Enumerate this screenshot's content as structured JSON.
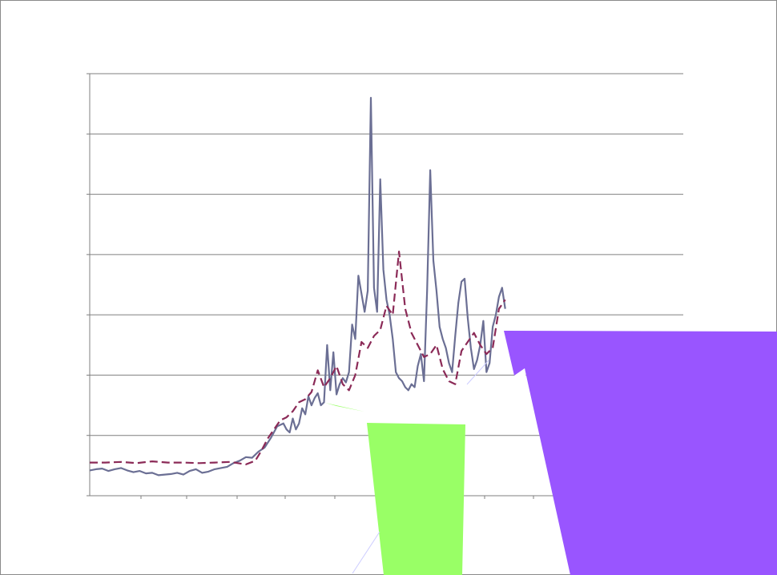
{
  "chart_data": {
    "type": "line",
    "title": "",
    "xlabel": "",
    "ylabel": "",
    "ylim": [
      0,
      7
    ],
    "xlim": [
      0,
      380
    ],
    "grid": true,
    "legend": "none",
    "colors": {
      "series_1": "#6b6f94",
      "series_2": "#8b2a57",
      "gridline": "#7f7f7f",
      "overlay_green": "#99ff66",
      "overlay_purple": "#9955ff"
    },
    "series": [
      {
        "key": "s1",
        "style": "solid",
        "x": [
          0,
          4,
          8,
          12,
          16,
          20,
          24,
          28,
          32,
          36,
          40,
          44,
          48,
          52,
          56,
          60,
          64,
          68,
          72,
          76,
          80,
          84,
          88,
          92,
          96,
          100,
          104,
          108,
          112,
          116,
          120,
          124,
          126,
          128,
          130,
          132,
          134,
          136,
          138,
          140,
          142,
          144,
          146,
          148,
          150,
          152,
          154,
          156,
          158,
          160,
          162,
          164,
          166,
          168,
          170,
          172,
          174,
          176,
          178,
          180,
          182,
          184,
          186,
          188,
          190,
          192,
          194,
          196,
          198,
          200,
          202,
          204,
          206,
          208,
          210,
          212,
          214,
          216,
          218,
          220,
          222,
          224,
          226,
          228,
          230,
          232,
          234,
          236,
          238,
          240,
          242,
          244,
          246,
          248,
          250,
          252,
          254,
          256,
          258,
          260,
          262,
          264,
          266
        ],
        "values": [
          0.42,
          0.44,
          0.45,
          0.41,
          0.44,
          0.46,
          0.42,
          0.39,
          0.41,
          0.37,
          0.38,
          0.34,
          0.35,
          0.36,
          0.38,
          0.35,
          0.41,
          0.44,
          0.38,
          0.4,
          0.44,
          0.46,
          0.48,
          0.54,
          0.58,
          0.64,
          0.63,
          0.73,
          0.8,
          0.96,
          1.15,
          1.2,
          1.1,
          1.05,
          1.28,
          1.1,
          1.2,
          1.45,
          1.35,
          1.65,
          1.5,
          1.62,
          1.7,
          1.5,
          1.55,
          2.5,
          1.75,
          2.38,
          1.68,
          1.85,
          1.95,
          1.88,
          2.05,
          2.84,
          2.6,
          3.65,
          3.35,
          3.05,
          3.4,
          6.6,
          3.45,
          3.05,
          5.25,
          3.75,
          3.25,
          3.0,
          2.6,
          2.05,
          1.95,
          1.9,
          1.8,
          1.75,
          1.85,
          1.8,
          2.15,
          2.35,
          1.9,
          3.4,
          5.4,
          3.9,
          3.4,
          2.8,
          2.6,
          2.45,
          2.2,
          2.05,
          2.65,
          3.2,
          3.55,
          3.6,
          2.95,
          2.45,
          2.1,
          2.25,
          2.5,
          2.9,
          2.05,
          2.2,
          2.8,
          3.0,
          3.3,
          3.45,
          3.1
        ]
      },
      {
        "key": "s2",
        "style": "dashed",
        "x": [
          0,
          10,
          20,
          30,
          40,
          50,
          60,
          70,
          80,
          90,
          100,
          106,
          110,
          114,
          118,
          122,
          126,
          130,
          134,
          138,
          142,
          146,
          150,
          154,
          158,
          162,
          166,
          170,
          174,
          178,
          182,
          186,
          190,
          194,
          198,
          202,
          206,
          210,
          214,
          218,
          222,
          226,
          230,
          234,
          238,
          242,
          246,
          250,
          254,
          258,
          262,
          266
        ],
        "values": [
          0.55,
          0.55,
          0.56,
          0.54,
          0.57,
          0.55,
          0.55,
          0.54,
          0.55,
          0.56,
          0.52,
          0.58,
          0.75,
          0.95,
          1.1,
          1.25,
          1.3,
          1.4,
          1.55,
          1.6,
          1.72,
          2.08,
          1.8,
          1.95,
          2.15,
          1.85,
          1.75,
          2.0,
          2.55,
          2.45,
          2.65,
          2.75,
          3.15,
          3.0,
          4.05,
          3.1,
          2.7,
          2.5,
          2.3,
          2.35,
          2.5,
          2.1,
          1.9,
          1.85,
          2.4,
          2.55,
          2.7,
          2.5,
          2.35,
          2.45,
          3.1,
          3.25
        ]
      }
    ]
  }
}
